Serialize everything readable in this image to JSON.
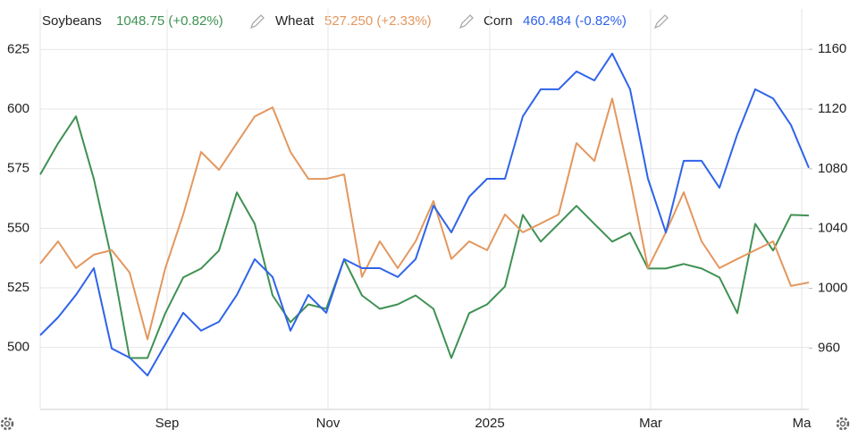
{
  "chart_data": {
    "type": "line",
    "legend_values": [
      "1048.75 (+0.82%)",
      "527.250 (+2.33%)",
      "460.484 (-0.82%)"
    ],
    "x": [
      0,
      1,
      2,
      3,
      4,
      5,
      6,
      7,
      8,
      9,
      10,
      11,
      12,
      13,
      14,
      15,
      16,
      17,
      18,
      19,
      20,
      21,
      22,
      23,
      24,
      25,
      26,
      27,
      28,
      29,
      30,
      31,
      32,
      33,
      34,
      35,
      36,
      37,
      38,
      39,
      40,
      41,
      42,
      43
    ],
    "xlim": [
      0,
      43
    ],
    "xticks": [
      {
        "value": 7.1,
        "label": "Sep"
      },
      {
        "value": 16.1,
        "label": "Nov"
      },
      {
        "value": 25.15,
        "label": "2025"
      },
      {
        "value": 34.15,
        "label": "Mar"
      },
      {
        "value": 42.6,
        "label": "Ma"
      }
    ],
    "ylim": [
      474,
      642
    ],
    "yticks": [
      500,
      525,
      550,
      575,
      600,
      625
    ],
    "y2lim": [
      919,
      1187
    ],
    "y2ticks": [
      960,
      1000,
      1040,
      1080,
      1120,
      1160
    ],
    "y3lim": [
      370,
      520
    ],
    "grid": true,
    "series": [
      {
        "name": "Soybeans",
        "color": "#3f9153",
        "axis": "y2",
        "values": [
          1076.2,
          1097.1,
          1115.1,
          1073.2,
          1019.3,
          953.4,
          953.4,
          983.4,
          1007.3,
          1013.3,
          1025.3,
          1064.2,
          1043.2,
          995.3,
          977.4,
          989.3,
          986.3,
          1019.3,
          995.3,
          986.3,
          989.3,
          995.3,
          986.3,
          953.4,
          983.4,
          989.3,
          1001.3,
          1049.2,
          1031.3,
          1043.2,
          1055.2,
          1043.2,
          1031.3,
          1037.2,
          1013.3,
          1013.3,
          1016.3,
          1013.3,
          1007.3,
          983.4,
          1043.2,
          1025.3,
          1049.2,
          1048.75
        ]
      },
      {
        "name": "Wheat",
        "color": "#e3975e",
        "axis": "y",
        "values": [
          535.2,
          544.5,
          533.3,
          538.9,
          540.8,
          531.4,
          503.4,
          533.3,
          555.8,
          582.0,
          574.5,
          585.7,
          596.9,
          600.7,
          582.0,
          570.7,
          570.7,
          572.6,
          529.6,
          544.5,
          533.3,
          544.5,
          561.4,
          537.1,
          544.5,
          540.8,
          555.8,
          548.3,
          552.0,
          555.8,
          585.7,
          578.2,
          604.4,
          570.7,
          533.3,
          548.3,
          565.1,
          544.5,
          533.3,
          537.1,
          540.8,
          544.5,
          525.8,
          527.25
        ]
      },
      {
        "name": "Corn",
        "color": "#2f63e9",
        "axis": "y3",
        "values": [
          397.8,
          404.5,
          412.9,
          422.9,
          392.8,
          389.4,
          382.7,
          394.4,
          406.2,
          399.5,
          402.8,
          412.9,
          426.3,
          419.6,
          399.5,
          412.9,
          406.2,
          426.3,
          422.9,
          422.9,
          419.6,
          426.3,
          446.3,
          436.3,
          449.7,
          456.4,
          456.4,
          479.8,
          489.9,
          489.9,
          496.6,
          493.2,
          503.3,
          489.9,
          456.4,
          436.3,
          463.1,
          463.1,
          453.0,
          473.1,
          489.9,
          486.5,
          476.5,
          460.484
        ]
      }
    ]
  }
}
